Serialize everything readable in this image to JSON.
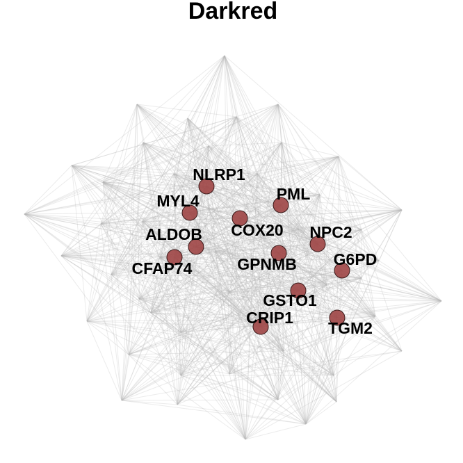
{
  "title": "Darkred",
  "colors": {
    "node_fill": "#9e4545",
    "node_stroke": "#3a1a1a",
    "edge": "#b8b8b8"
  },
  "highlighted_nodes": [
    {
      "id": "nlrp1",
      "label": "NLRP1"
    },
    {
      "id": "myl4",
      "label": "MYL4"
    },
    {
      "id": "pml",
      "label": "PML"
    },
    {
      "id": "cox20",
      "label": "COX20"
    },
    {
      "id": "aldob",
      "label": "ALDOB"
    },
    {
      "id": "npc2",
      "label": "NPC2"
    },
    {
      "id": "cfap74",
      "label": "CFAP74"
    },
    {
      "id": "gpnmb",
      "label": "GPNMB"
    },
    {
      "id": "g6pd",
      "label": "G6PD"
    },
    {
      "id": "gsto1",
      "label": "GSTO1"
    },
    {
      "id": "crip1",
      "label": "CRIP1"
    },
    {
      "id": "tgm2",
      "label": "TGM2"
    }
  ]
}
